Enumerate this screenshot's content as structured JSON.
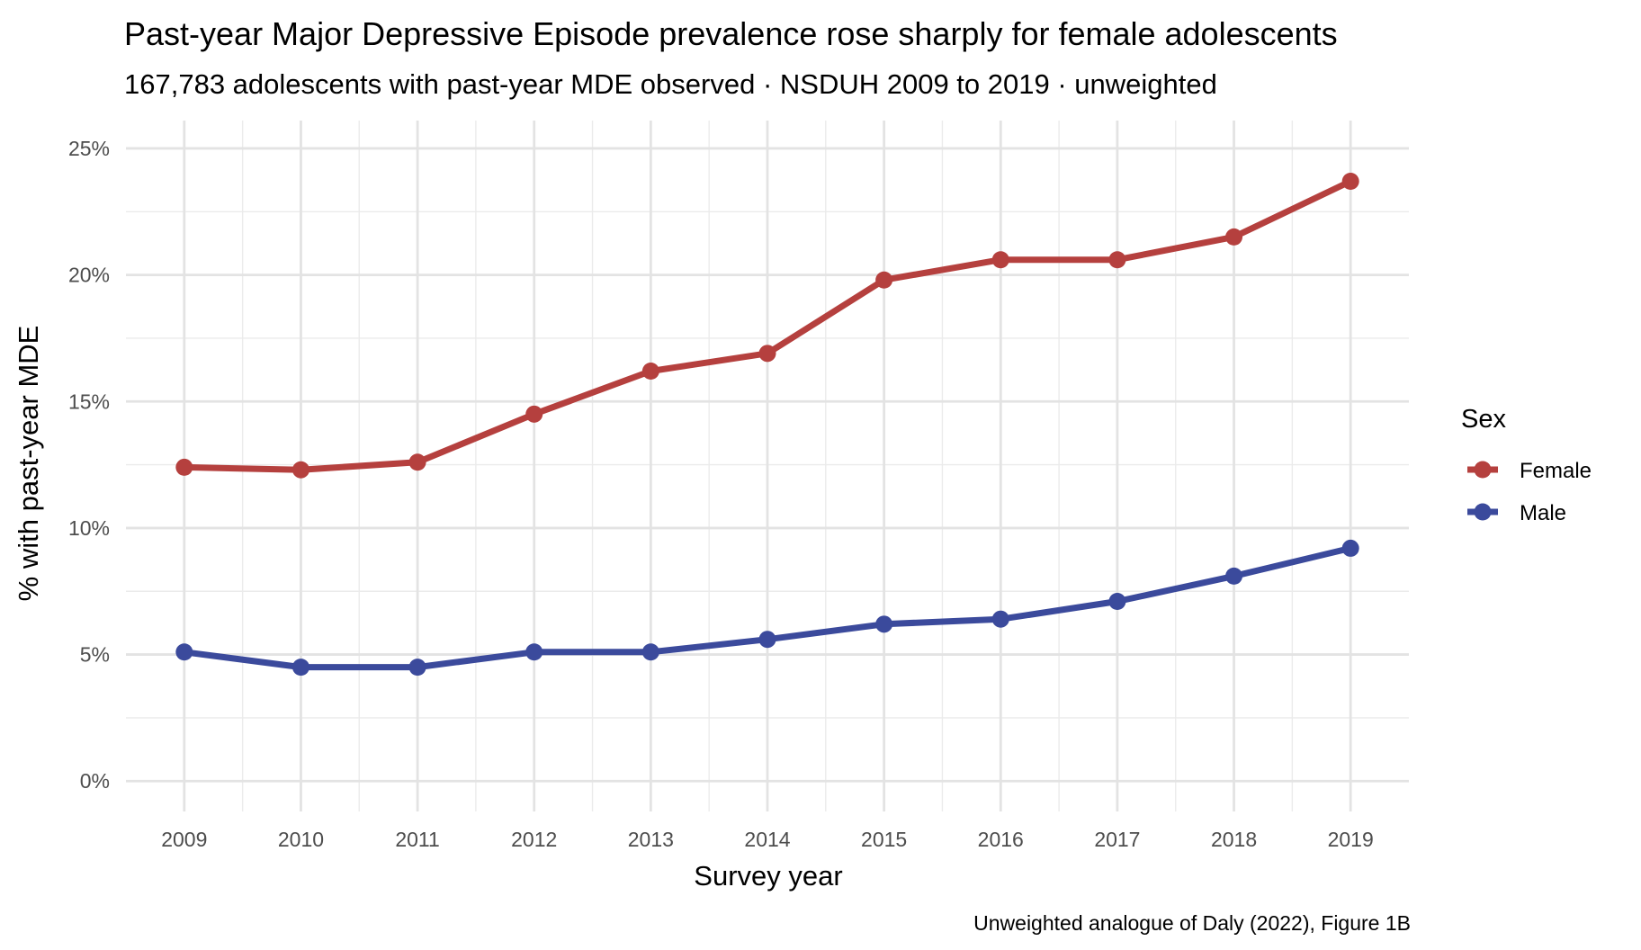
{
  "chart_data": {
    "type": "line",
    "title": "Past-year Major Depressive Episode prevalence rose sharply for female adolescents",
    "subtitle": "167,783 adolescents with past-year MDE observed · NSDUH 2009 to 2019 · unweighted",
    "caption": "Unweighted analogue of Daly (2022), Figure 1B",
    "xlabel": "Survey year",
    "ylabel": "% with past-year MDE",
    "x": [
      2009,
      2010,
      2011,
      2012,
      2013,
      2014,
      2015,
      2016,
      2017,
      2018,
      2019
    ],
    "xlim": [
      2008.5,
      2019.5
    ],
    "ylim": [
      -1.2,
      26.1
    ],
    "y_ticks": [
      0,
      5,
      10,
      15,
      20,
      25
    ],
    "y_tick_labels": [
      "0%",
      "5%",
      "10%",
      "15%",
      "20%",
      "25%"
    ],
    "x_tick_labels": [
      "2009",
      "2010",
      "2011",
      "2012",
      "2013",
      "2014",
      "2015",
      "2016",
      "2017",
      "2018",
      "2019"
    ],
    "grid": true,
    "legend": {
      "title": "Sex",
      "position": "right"
    },
    "series": [
      {
        "name": "Female",
        "color": "#b5403e",
        "values": [
          12.4,
          12.3,
          12.6,
          14.5,
          16.2,
          16.9,
          19.8,
          20.6,
          20.6,
          21.5,
          23.7
        ]
      },
      {
        "name": "Male",
        "color": "#3b4a9c",
        "values": [
          5.1,
          4.5,
          4.5,
          5.1,
          5.1,
          5.6,
          6.2,
          6.4,
          7.1,
          8.1,
          9.2
        ]
      }
    ]
  }
}
